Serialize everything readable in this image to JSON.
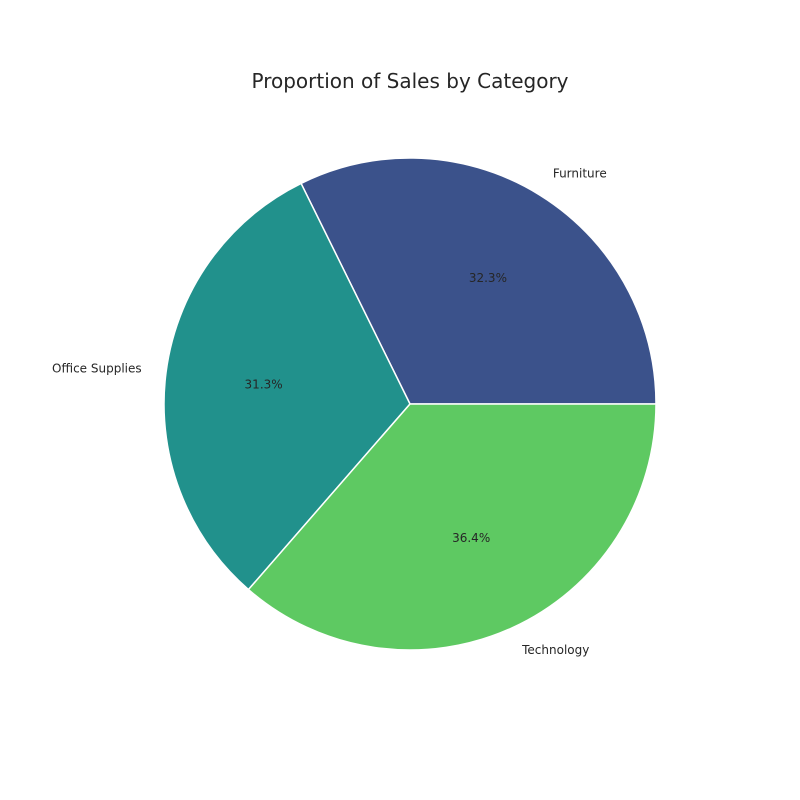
{
  "chart_data": {
    "type": "pie",
    "title": "Proportion of Sales by Category",
    "categories": [
      "Furniture",
      "Office Supplies",
      "Technology"
    ],
    "values": [
      32.3,
      31.3,
      36.4
    ],
    "value_labels": [
      "32.3%",
      "31.3%",
      "36.4%"
    ],
    "colors": [
      "#3b528b",
      "#21918c",
      "#5ec962"
    ],
    "start_angle_deg": 0,
    "direction": "counterclockwise",
    "edge_color": "#ffffff"
  }
}
